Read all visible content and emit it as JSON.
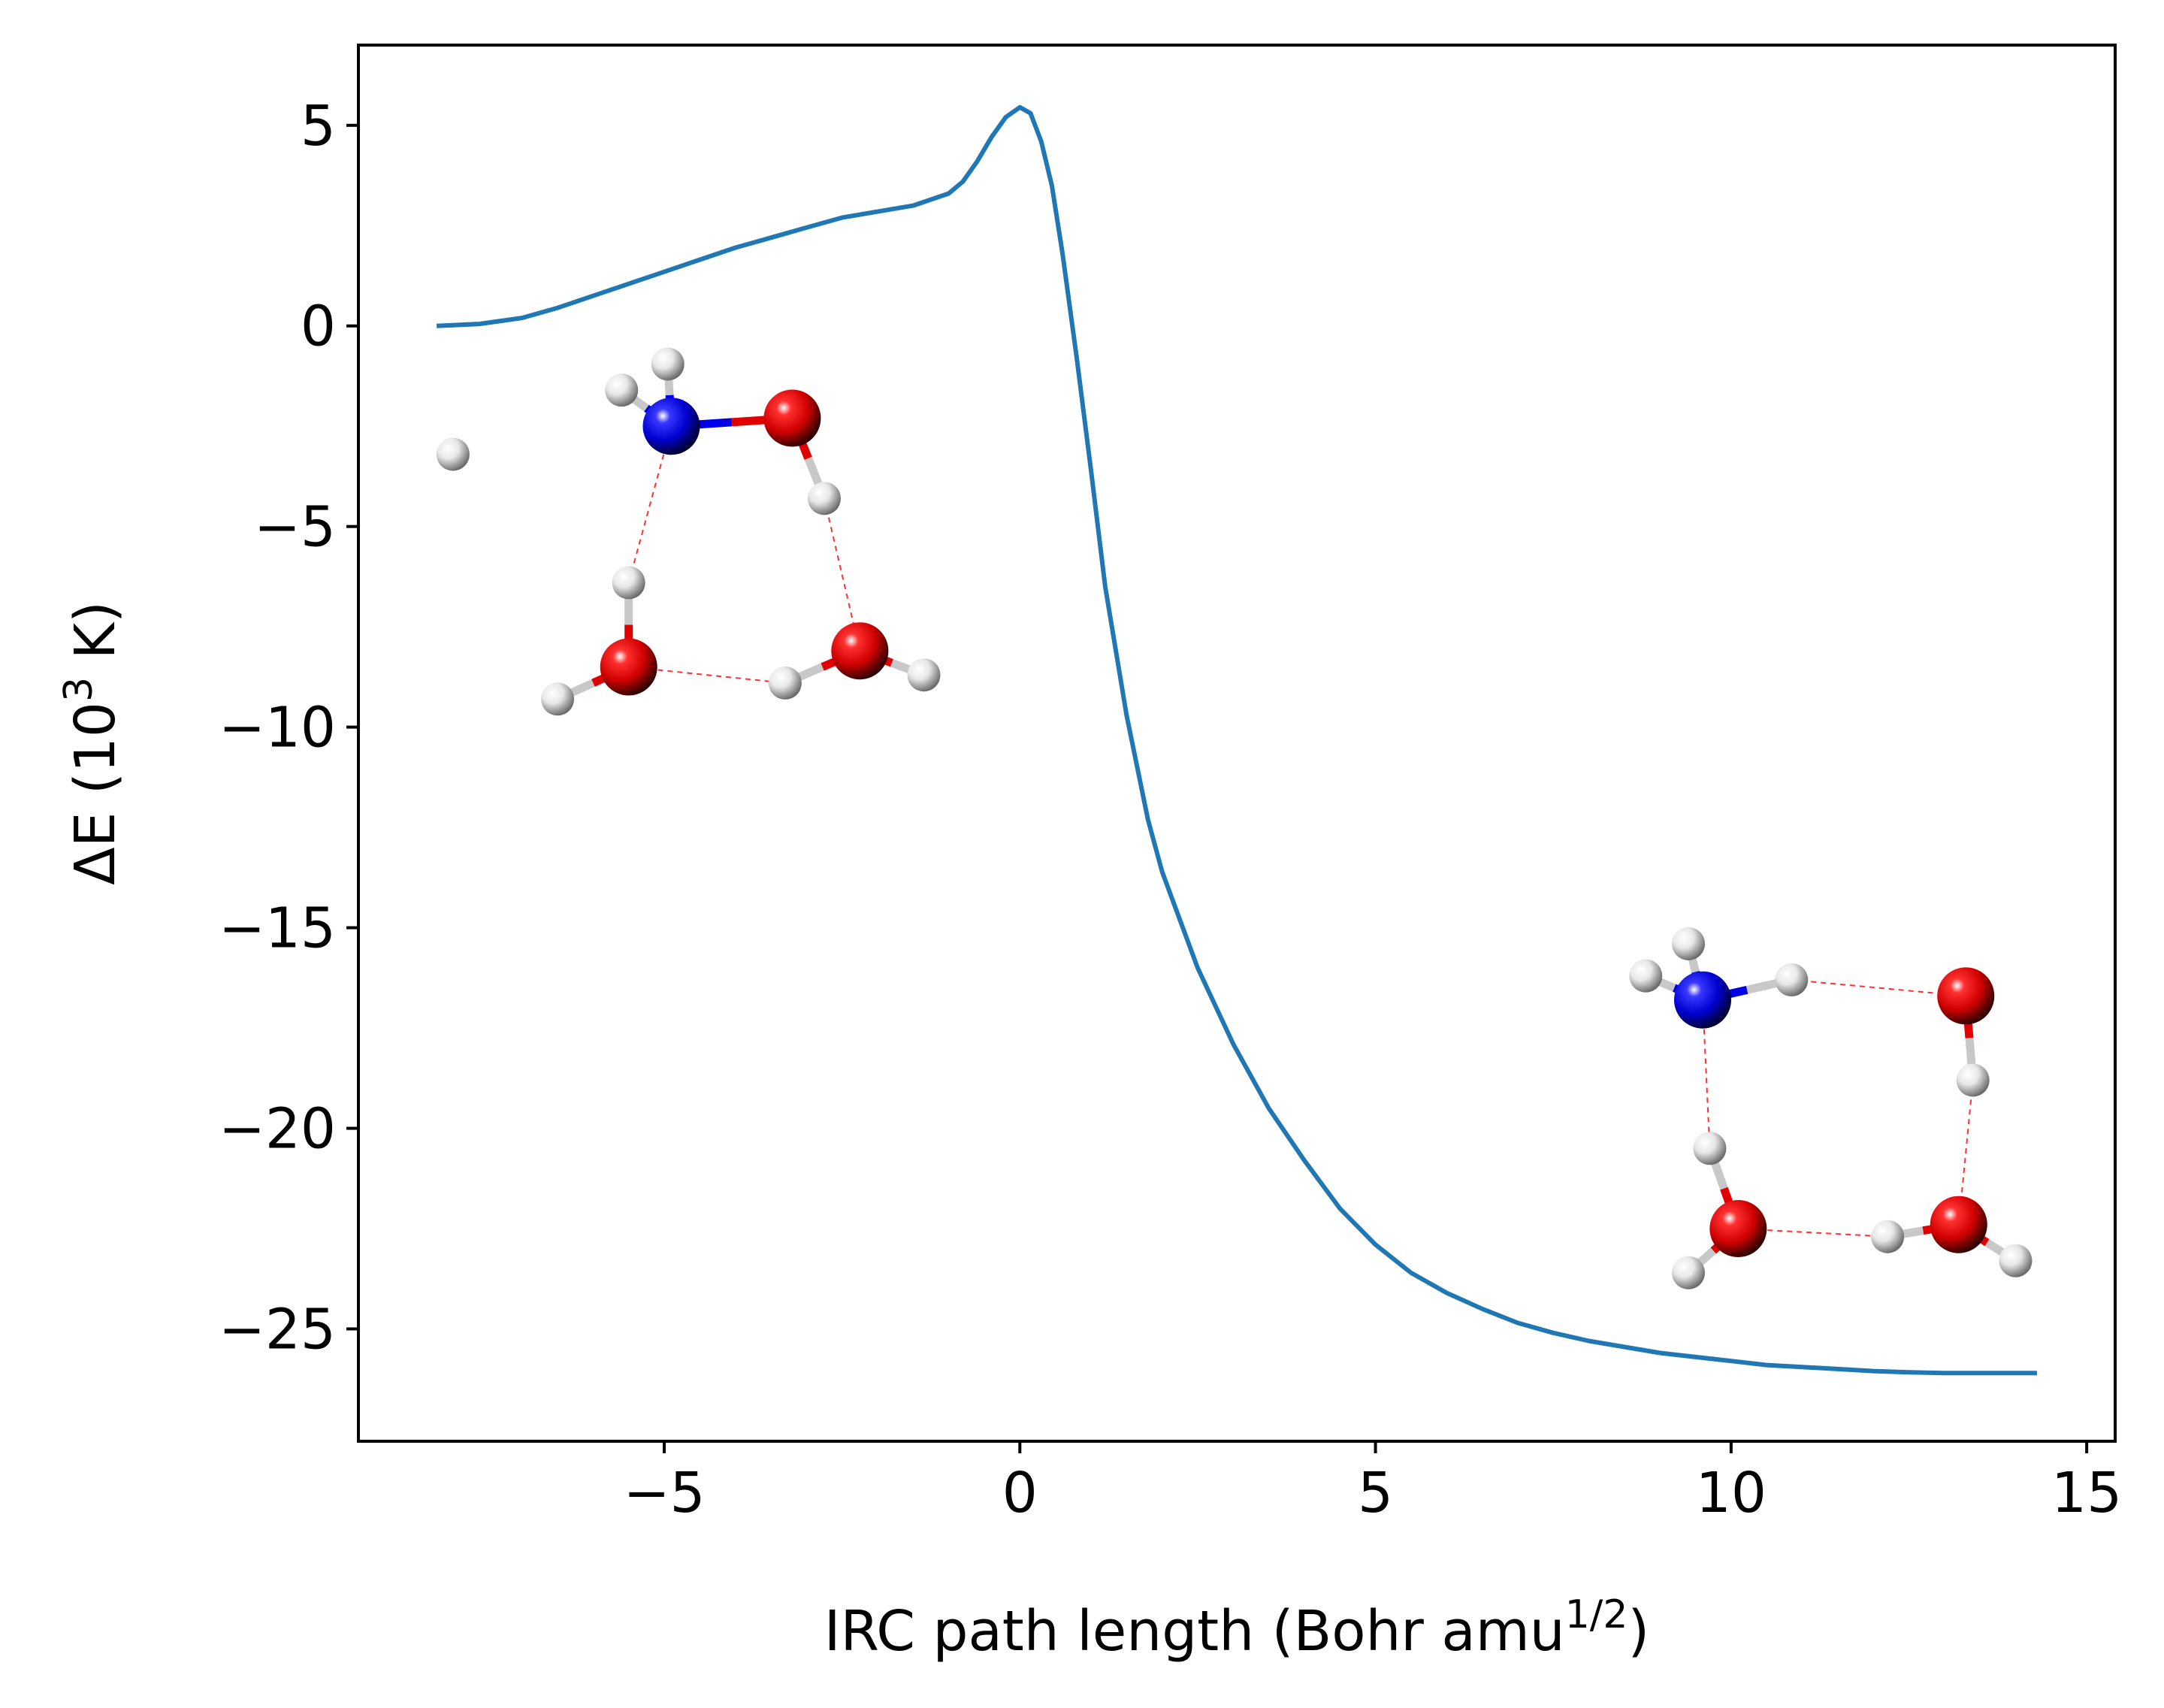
{
  "chart_data": {
    "type": "line",
    "xlabel": "IRC path length (Bohr amu",
    "xlabel_sup": "1/2",
    "xlabel_end": ")",
    "ylabel": "ΔE (10",
    "ylabel_sup": "3",
    "ylabel_end": " K)",
    "xlim": [
      -9.3,
      15.4
    ],
    "ylim": [
      -27.8,
      7.0
    ],
    "xticks": [
      -5,
      0,
      5,
      10,
      15
    ],
    "xtick_labels": [
      "−5",
      "0",
      "5",
      "10",
      "15"
    ],
    "yticks": [
      5,
      0,
      -5,
      -10,
      -15,
      -20,
      -25
    ],
    "ytick_labels": [
      "5",
      "0",
      "−5",
      "−10",
      "−15",
      "−20",
      "−25"
    ],
    "grid": false,
    "series": [
      {
        "color": "#1f77b4",
        "x": [
          -8.2,
          -7.6,
          -7.0,
          -6.5,
          -6.0,
          -5.5,
          -5.0,
          -4.5,
          -4.0,
          -3.5,
          -3.0,
          -2.5,
          -2.0,
          -1.5,
          -1.0,
          -0.8,
          -0.6,
          -0.4,
          -0.2,
          0.0,
          0.15,
          0.3,
          0.45,
          0.6,
          0.8,
          1.0,
          1.2,
          1.5,
          1.8,
          2.0,
          2.5,
          3.0,
          3.5,
          4.0,
          4.5,
          5.0,
          5.5,
          6.0,
          6.5,
          7.0,
          7.5,
          8.0,
          8.5,
          9.0,
          9.5,
          10.0,
          10.5,
          11.0,
          11.5,
          12.0,
          12.5,
          13.0,
          13.5,
          14.0,
          14.3
        ],
        "y": [
          0.0,
          0.05,
          0.2,
          0.45,
          0.75,
          1.05,
          1.35,
          1.65,
          1.95,
          2.2,
          2.45,
          2.7,
          2.85,
          3.0,
          3.3,
          3.6,
          4.1,
          4.7,
          5.2,
          5.45,
          5.3,
          4.6,
          3.5,
          1.8,
          -0.8,
          -3.6,
          -6.5,
          -9.7,
          -12.3,
          -13.6,
          -16.0,
          -17.9,
          -19.5,
          -20.8,
          -22.0,
          -22.9,
          -23.6,
          -24.1,
          -24.5,
          -24.85,
          -25.1,
          -25.3,
          -25.45,
          -25.6,
          -25.7,
          -25.8,
          -25.9,
          -25.95,
          -26.0,
          -26.05,
          -26.08,
          -26.1,
          -26.1,
          -26.1,
          -26.1
        ]
      }
    ]
  },
  "insets": {
    "reactant": {
      "atoms": [
        {
          "el": "H",
          "x": -7.97,
          "y": -3.2
        },
        {
          "el": "N",
          "x": -4.9,
          "y": -2.5
        },
        {
          "el": "H",
          "x": -5.6,
          "y": -1.6
        },
        {
          "el": "H",
          "x": -4.95,
          "y": -0.95
        },
        {
          "el": "O",
          "x": -3.2,
          "y": -2.3
        },
        {
          "el": "H",
          "x": -2.75,
          "y": -4.3
        },
        {
          "el": "H",
          "x": -5.5,
          "y": -6.4
        },
        {
          "el": "O",
          "x": -5.5,
          "y": -8.5
        },
        {
          "el": "H",
          "x": -6.5,
          "y": -9.3
        },
        {
          "el": "H",
          "x": -3.3,
          "y": -8.9
        },
        {
          "el": "O",
          "x": -2.25,
          "y": -8.1
        },
        {
          "el": "H",
          "x": -1.35,
          "y": -8.7
        }
      ],
      "bonds": [
        [
          1,
          2
        ],
        [
          1,
          3
        ],
        [
          1,
          4
        ],
        [
          4,
          5
        ],
        [
          6,
          7
        ],
        [
          7,
          8
        ],
        [
          9,
          10
        ],
        [
          10,
          11
        ]
      ],
      "hbonds": [
        [
          1,
          6
        ],
        [
          5,
          10
        ],
        [
          7,
          9
        ]
      ]
    },
    "product": {
      "atoms": [
        {
          "el": "N",
          "x": 9.6,
          "y": -16.8
        },
        {
          "el": "H",
          "x": 8.8,
          "y": -16.2
        },
        {
          "el": "H",
          "x": 9.4,
          "y": -15.4
        },
        {
          "el": "H",
          "x": 10.85,
          "y": -16.3
        },
        {
          "el": "O",
          "x": 13.3,
          "y": -16.7
        },
        {
          "el": "H",
          "x": 13.4,
          "y": -18.8
        },
        {
          "el": "H",
          "x": 9.7,
          "y": -20.5
        },
        {
          "el": "O",
          "x": 10.1,
          "y": -22.5
        },
        {
          "el": "H",
          "x": 9.4,
          "y": -23.6
        },
        {
          "el": "H",
          "x": 12.2,
          "y": -22.7
        },
        {
          "el": "O",
          "x": 13.2,
          "y": -22.4
        },
        {
          "el": "H",
          "x": 14.0,
          "y": -23.3
        }
      ],
      "bonds": [
        [
          0,
          1
        ],
        [
          0,
          2
        ],
        [
          0,
          3
        ],
        [
          4,
          5
        ],
        [
          6,
          7
        ],
        [
          7,
          8
        ],
        [
          9,
          10
        ],
        [
          10,
          11
        ]
      ],
      "hbonds": [
        [
          3,
          4
        ],
        [
          0,
          6
        ],
        [
          5,
          10
        ],
        [
          7,
          9
        ]
      ]
    },
    "colors": {
      "N": "#0000e8",
      "O": "#e00000",
      "H": "#f2f2f2",
      "hbond": "#ff3030"
    }
  }
}
